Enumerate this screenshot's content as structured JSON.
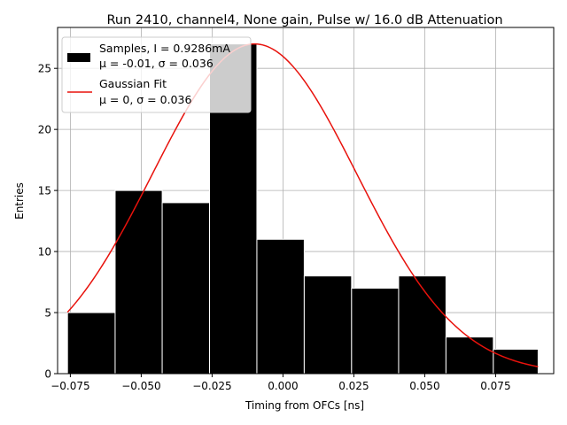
{
  "chart_data": {
    "type": "bar",
    "title": "Run 2410, channel4, None gain, Pulse w/ 16.0 dB Attenuation",
    "xlabel": "Timing from OFCs [ns]",
    "ylabel": "Entries",
    "xlim": [
      -0.0795,
      0.0955
    ],
    "ylim": [
      0,
      28.35
    ],
    "xticks": [
      -0.075,
      -0.05,
      -0.025,
      0.0,
      0.025,
      0.05,
      0.075
    ],
    "xtick_labels": [
      "−0.075",
      "−0.050",
      "−0.025",
      "0.000",
      "0.025",
      "0.050",
      "0.075"
    ],
    "yticks": [
      0,
      5,
      10,
      15,
      20,
      25
    ],
    "ytick_labels": [
      "0",
      "5",
      "10",
      "15",
      "20",
      "25"
    ],
    "grid": true,
    "legend_position": "top-left",
    "histogram": {
      "bin_edges": [
        -0.076,
        -0.0592,
        -0.0426,
        -0.0259,
        -0.0092,
        0.0075,
        0.0242,
        0.0408,
        0.0575,
        0.0742,
        0.09
      ],
      "counts": [
        5,
        15,
        14,
        27,
        11,
        8,
        7,
        8,
        3,
        2
      ],
      "color": "#000000",
      "edgecolor": "#ffffff"
    },
    "fit": {
      "amplitude": 27,
      "mean": -0.01,
      "sigma": 0.036,
      "x_range": [
        -0.076,
        0.09
      ],
      "color": "#e8120c"
    },
    "legend": {
      "samples_line1": "Samples, I = 0.9286mA",
      "samples_line2": "μ = -0.01, σ = 0.036",
      "fit_line1": "Gaussian Fit",
      "fit_line2": "μ = 0, σ = 0.036"
    }
  }
}
